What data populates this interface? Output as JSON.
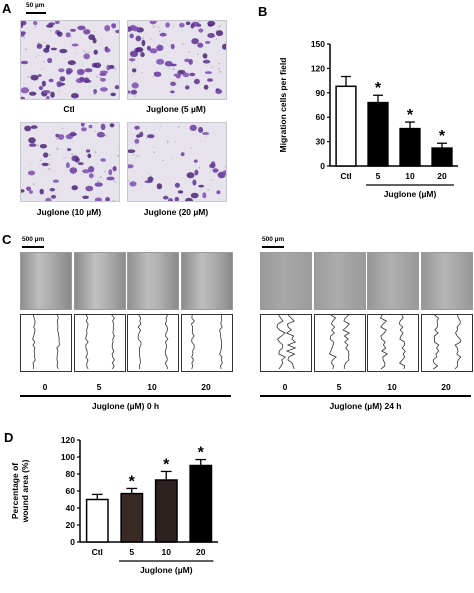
{
  "panels": {
    "a": "A",
    "b": "B",
    "c": "C",
    "d": "D"
  },
  "panel_a": {
    "scale_label": "50 µm",
    "captions": [
      "Ctl",
      "Juglone (5 µM)",
      "Juglone (10 µM)",
      "Juglone (20 µM)"
    ]
  },
  "panel_c": {
    "scale_label_left": "500 µm",
    "scale_label_right": "500 µm",
    "doses_left": [
      "0",
      "5",
      "10",
      "20"
    ],
    "doses_right": [
      "0",
      "5",
      "10",
      "20"
    ],
    "caption_left": "Juglone (µM)  0 h",
    "caption_right": "Juglone (µM)  24 h"
  },
  "chart_data": [
    {
      "panel": "B",
      "type": "bar",
      "categories": [
        "Ctl",
        "5",
        "10",
        "20"
      ],
      "values": [
        98,
        78,
        46,
        22
      ],
      "errors": [
        12,
        9,
        8,
        6
      ],
      "significant": [
        false,
        true,
        true,
        true
      ],
      "significance_marker": "*",
      "fill_colors": [
        "#ffffff",
        "#000000",
        "#000000",
        "#000000"
      ],
      "ylabel": "Migration cells per field",
      "xlabel": "Juglone (µM)",
      "ylim": [
        0,
        150
      ],
      "yticks": [
        "0",
        "30",
        "60",
        "90",
        "120",
        "150"
      ],
      "ytick_values": [
        0,
        30,
        60,
        90,
        120,
        150
      ]
    },
    {
      "panel": "D",
      "type": "bar",
      "categories": [
        "Ctl",
        "5",
        "10",
        "20"
      ],
      "values": [
        50,
        57,
        73,
        90
      ],
      "errors": [
        6,
        6,
        10,
        7
      ],
      "significant": [
        false,
        true,
        true,
        true
      ],
      "significance_marker": "*",
      "fill_colors": [
        "#ffffff",
        "#3a2a26",
        "#2e2220",
        "#000000"
      ],
      "ylabel": "Percentage of wound area (%)",
      "ylabel_lines": [
        "Percentage of",
        "wound area (%)"
      ],
      "xlabel": "Juglone (µM)",
      "ylim": [
        0,
        120
      ],
      "yticks": [
        "0",
        "20",
        "40",
        "60",
        "80",
        "100",
        "120"
      ],
      "ytick_values": [
        0,
        20,
        40,
        60,
        80,
        100,
        120
      ]
    }
  ]
}
